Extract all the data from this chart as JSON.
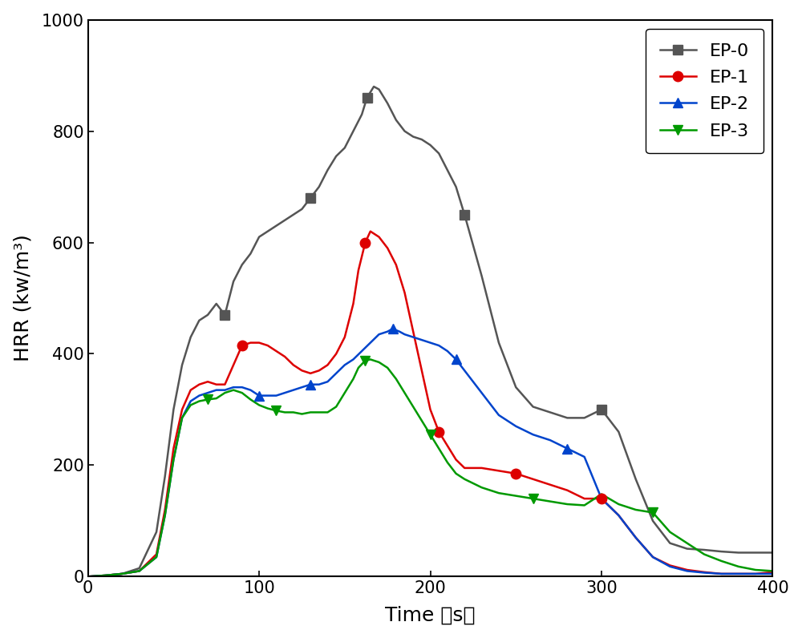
{
  "title": "",
  "xlabel": "Time （s）",
  "ylabel": "HRR (kw/m³)",
  "xlim": [
    0,
    400
  ],
  "ylim": [
    0,
    1000
  ],
  "xticks": [
    0,
    100,
    200,
    300,
    400
  ],
  "yticks": [
    0,
    200,
    400,
    600,
    800,
    1000
  ],
  "series": {
    "EP-0": {
      "color": "#555555",
      "marker": "s",
      "x": [
        0,
        10,
        20,
        30,
        40,
        45,
        50,
        55,
        60,
        65,
        70,
        75,
        80,
        85,
        90,
        95,
        100,
        105,
        110,
        115,
        120,
        125,
        130,
        135,
        140,
        145,
        150,
        155,
        160,
        163,
        167,
        170,
        175,
        180,
        185,
        190,
        195,
        200,
        205,
        210,
        215,
        220,
        230,
        240,
        250,
        260,
        270,
        280,
        290,
        300,
        310,
        320,
        330,
        340,
        350,
        360,
        370,
        380,
        390,
        400
      ],
      "y": [
        0,
        2,
        5,
        15,
        80,
        180,
        300,
        380,
        430,
        460,
        470,
        490,
        470,
        530,
        560,
        580,
        610,
        620,
        630,
        640,
        650,
        660,
        680,
        700,
        730,
        755,
        770,
        800,
        830,
        860,
        880,
        875,
        850,
        820,
        800,
        790,
        785,
        775,
        760,
        730,
        700,
        650,
        540,
        420,
        340,
        305,
        295,
        285,
        285,
        300,
        260,
        175,
        100,
        60,
        50,
        48,
        45,
        43,
        43,
        43
      ],
      "marker_x": [
        80,
        130,
        165,
        220,
        300
      ]
    },
    "EP-1": {
      "color": "#dd0000",
      "marker": "o",
      "x": [
        0,
        10,
        20,
        30,
        40,
        45,
        50,
        55,
        60,
        65,
        70,
        75,
        80,
        85,
        90,
        95,
        100,
        105,
        110,
        115,
        120,
        125,
        130,
        135,
        140,
        145,
        150,
        155,
        158,
        162,
        165,
        170,
        175,
        180,
        185,
        190,
        195,
        200,
        205,
        210,
        215,
        220,
        225,
        230,
        240,
        250,
        260,
        270,
        280,
        290,
        300,
        310,
        320,
        330,
        340,
        350,
        360,
        370,
        380,
        390,
        400
      ],
      "y": [
        0,
        2,
        5,
        10,
        40,
        120,
        230,
        300,
        335,
        345,
        350,
        345,
        345,
        380,
        415,
        420,
        420,
        415,
        405,
        395,
        380,
        370,
        365,
        370,
        380,
        400,
        430,
        490,
        550,
        600,
        620,
        610,
        590,
        560,
        510,
        440,
        370,
        300,
        260,
        235,
        210,
        195,
        195,
        195,
        190,
        185,
        175,
        165,
        155,
        140,
        140,
        110,
        70,
        35,
        20,
        12,
        8,
        5,
        5,
        5,
        8
      ],
      "marker_x": [
        90,
        162,
        205,
        250,
        300
      ]
    },
    "EP-2": {
      "color": "#0044cc",
      "marker": "^",
      "x": [
        0,
        10,
        20,
        30,
        40,
        45,
        50,
        55,
        60,
        65,
        70,
        75,
        80,
        85,
        90,
        95,
        100,
        105,
        110,
        115,
        120,
        125,
        130,
        135,
        140,
        145,
        150,
        155,
        160,
        165,
        170,
        175,
        178,
        182,
        185,
        190,
        195,
        200,
        205,
        210,
        215,
        220,
        230,
        240,
        250,
        260,
        270,
        280,
        290,
        300,
        310,
        320,
        330,
        340,
        350,
        360,
        370,
        380,
        390,
        400
      ],
      "y": [
        0,
        2,
        5,
        10,
        35,
        110,
        210,
        285,
        315,
        325,
        330,
        335,
        335,
        340,
        340,
        335,
        325,
        325,
        325,
        330,
        335,
        340,
        345,
        345,
        350,
        365,
        380,
        390,
        405,
        420,
        435,
        440,
        445,
        440,
        435,
        430,
        425,
        420,
        415,
        405,
        390,
        370,
        330,
        290,
        270,
        255,
        245,
        230,
        215,
        140,
        110,
        70,
        35,
        18,
        10,
        7,
        5,
        5,
        5,
        5
      ],
      "marker_x": [
        100,
        130,
        178,
        215,
        280
      ]
    },
    "EP-3": {
      "color": "#009900",
      "marker": "v",
      "x": [
        0,
        10,
        20,
        30,
        40,
        45,
        50,
        55,
        60,
        65,
        70,
        75,
        80,
        85,
        90,
        95,
        100,
        105,
        110,
        115,
        120,
        125,
        130,
        135,
        140,
        145,
        150,
        155,
        158,
        162,
        165,
        170,
        175,
        180,
        185,
        190,
        195,
        200,
        205,
        210,
        215,
        220,
        230,
        240,
        250,
        260,
        270,
        280,
        290,
        300,
        310,
        320,
        330,
        340,
        350,
        360,
        370,
        380,
        390,
        400
      ],
      "y": [
        0,
        2,
        5,
        10,
        35,
        110,
        210,
        285,
        308,
        315,
        318,
        320,
        330,
        335,
        330,
        318,
        308,
        302,
        298,
        295,
        295,
        292,
        295,
        295,
        295,
        305,
        330,
        355,
        375,
        388,
        390,
        385,
        375,
        355,
        330,
        305,
        280,
        255,
        230,
        205,
        185,
        175,
        160,
        150,
        145,
        140,
        135,
        130,
        128,
        148,
        130,
        120,
        115,
        80,
        60,
        40,
        28,
        18,
        12,
        10
      ],
      "marker_x": [
        70,
        110,
        162,
        200,
        265,
        330
      ]
    }
  },
  "legend_loc": "upper right",
  "marker_size": 9,
  "linewidth": 1.8,
  "background_color": "#ffffff"
}
